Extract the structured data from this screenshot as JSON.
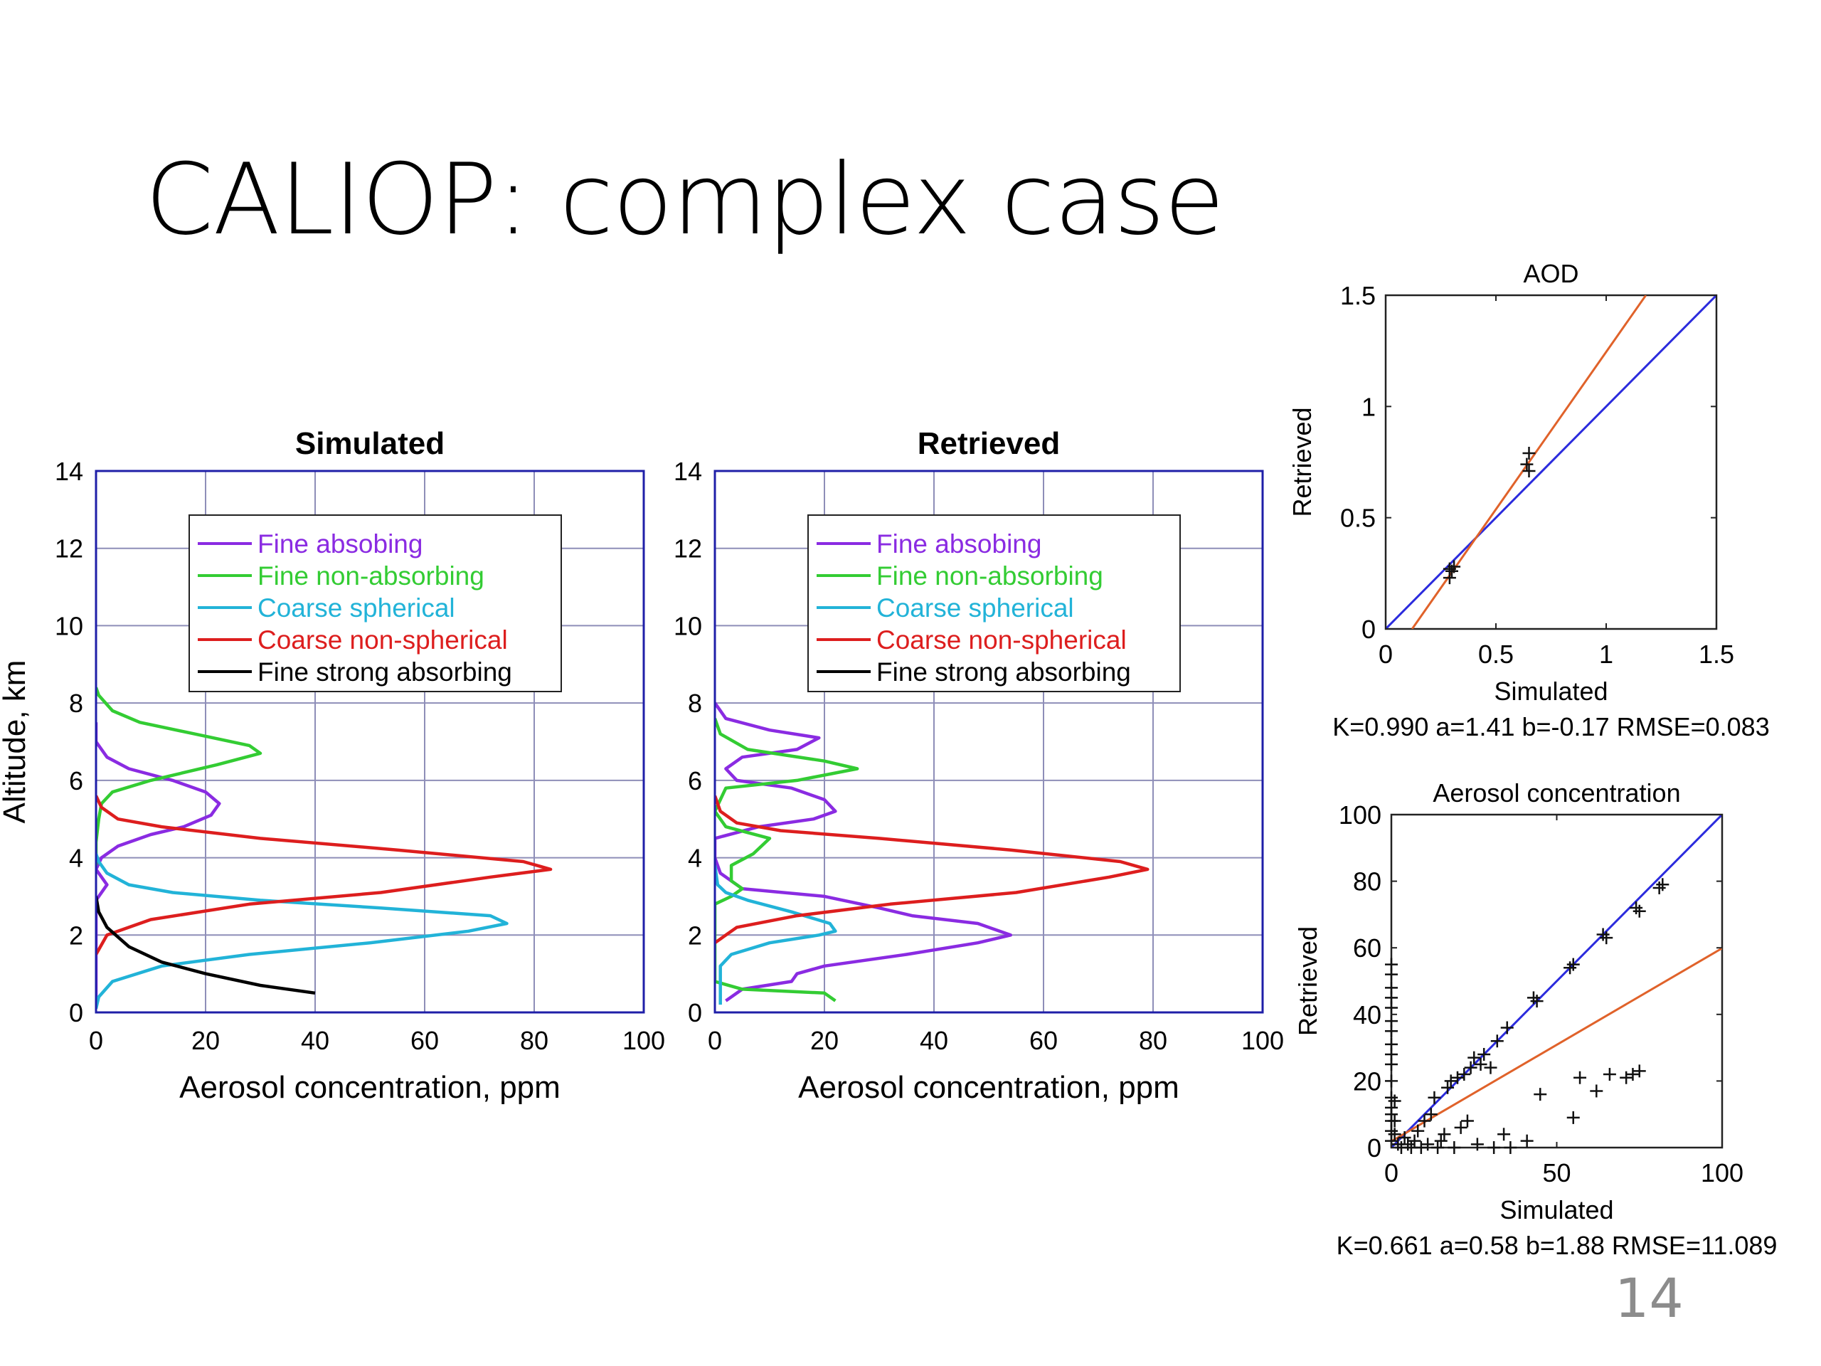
{
  "slide": {
    "title": "CALIOP: complex case",
    "page_number": "14"
  },
  "chart_data": [
    {
      "id": "simulated",
      "type": "line",
      "title": "Simulated",
      "xlabel": "Aerosol concentration, ppm",
      "ylabel": "Altitude, km",
      "xlim": [
        0,
        100
      ],
      "ylim": [
        0,
        14
      ],
      "xticks": [
        0,
        20,
        40,
        60,
        80,
        100
      ],
      "yticks": [
        0,
        2,
        4,
        6,
        8,
        10,
        12,
        14
      ],
      "grid": true,
      "legend_position": "top-right",
      "series": [
        {
          "name": "Fine absobing",
          "color": "#8a2be2",
          "points": [
            [
              0,
              0.3
            ],
            [
              0,
              1.0
            ],
            [
              0,
              2.0
            ],
            [
              0,
              2.9
            ],
            [
              2,
              3.3
            ],
            [
              0,
              3.7
            ],
            [
              1,
              4.0
            ],
            [
              4,
              4.3
            ],
            [
              10,
              4.6
            ],
            [
              16,
              4.8
            ],
            [
              21,
              5.1
            ],
            [
              22.5,
              5.4
            ],
            [
              20,
              5.7
            ],
            [
              14,
              6.0
            ],
            [
              6,
              6.3
            ],
            [
              2,
              6.6
            ],
            [
              0,
              7.0
            ],
            [
              0,
              7.5
            ]
          ]
        },
        {
          "name": "Fine non-absorbing",
          "color": "#33cc33",
          "points": [
            [
              0,
              3.8
            ],
            [
              0,
              4.4
            ],
            [
              0.5,
              5.0
            ],
            [
              1,
              5.4
            ],
            [
              3,
              5.7
            ],
            [
              10,
              6.0
            ],
            [
              22,
              6.4
            ],
            [
              30,
              6.7
            ],
            [
              28,
              6.9
            ],
            [
              18,
              7.2
            ],
            [
              8,
              7.5
            ],
            [
              3,
              7.8
            ],
            [
              0.5,
              8.2
            ],
            [
              0,
              8.4
            ]
          ]
        },
        {
          "name": "Coarse spherical",
          "color": "#22b3d8",
          "points": [
            [
              0,
              0.1
            ],
            [
              0.5,
              0.4
            ],
            [
              3,
              0.8
            ],
            [
              12,
              1.2
            ],
            [
              28,
              1.5
            ],
            [
              50,
              1.8
            ],
            [
              68,
              2.1
            ],
            [
              75,
              2.3
            ],
            [
              72,
              2.5
            ],
            [
              52,
              2.7
            ],
            [
              30,
              2.9
            ],
            [
              14,
              3.1
            ],
            [
              6,
              3.3
            ],
            [
              2,
              3.6
            ],
            [
              0.5,
              3.9
            ],
            [
              0,
              4.1
            ]
          ]
        },
        {
          "name": "Coarse non-spherical",
          "color": "#dd1e1e",
          "points": [
            [
              0,
              1.5
            ],
            [
              2,
              2.0
            ],
            [
              10,
              2.4
            ],
            [
              28,
              2.8
            ],
            [
              52,
              3.1
            ],
            [
              72,
              3.5
            ],
            [
              83,
              3.7
            ],
            [
              78,
              3.9
            ],
            [
              55,
              4.2
            ],
            [
              30,
              4.5
            ],
            [
              12,
              4.8
            ],
            [
              4,
              5.0
            ],
            [
              1,
              5.3
            ],
            [
              0,
              5.6
            ]
          ]
        },
        {
          "name": "Fine strong absorbing",
          "color": "#000000",
          "points": [
            [
              40,
              0.5
            ],
            [
              30,
              0.7
            ],
            [
              20,
              1.0
            ],
            [
              12,
              1.3
            ],
            [
              6,
              1.7
            ],
            [
              2,
              2.2
            ],
            [
              0.5,
              2.6
            ],
            [
              0,
              3.0
            ]
          ]
        }
      ]
    },
    {
      "id": "retrieved",
      "type": "line",
      "title": "Retrieved",
      "xlabel": "Aerosol concentration, ppm",
      "ylabel": "",
      "xlim": [
        0,
        100
      ],
      "ylim": [
        0,
        14
      ],
      "xticks": [
        0,
        20,
        40,
        60,
        80,
        100
      ],
      "yticks": [
        0,
        2,
        4,
        6,
        8,
        10,
        12,
        14
      ],
      "grid": true,
      "legend_position": "top-right",
      "series": [
        {
          "name": "Fine absobing",
          "color": "#8a2be2",
          "points": [
            [
              2,
              0.3
            ],
            [
              5,
              0.6
            ],
            [
              14,
              0.8
            ],
            [
              15,
              1.0
            ],
            [
              20,
              1.2
            ],
            [
              35,
              1.5
            ],
            [
              48,
              1.8
            ],
            [
              54,
              2.0
            ],
            [
              48,
              2.3
            ],
            [
              36,
              2.5
            ],
            [
              30,
              2.7
            ],
            [
              20,
              3.0
            ],
            [
              5,
              3.2
            ],
            [
              1,
              3.6
            ],
            [
              0,
              4.0
            ],
            [
              0,
              4.5
            ],
            [
              8,
              4.8
            ],
            [
              18,
              5.0
            ],
            [
              22,
              5.2
            ],
            [
              20,
              5.5
            ],
            [
              14,
              5.8
            ],
            [
              4,
              6.0
            ],
            [
              2,
              6.3
            ],
            [
              5,
              6.6
            ],
            [
              15,
              6.8
            ],
            [
              19,
              7.1
            ],
            [
              10,
              7.3
            ],
            [
              2,
              7.6
            ],
            [
              0,
              8.0
            ]
          ]
        },
        {
          "name": "Fine non-absorbing",
          "color": "#33cc33",
          "points": [
            [
              22,
              0.3
            ],
            [
              20,
              0.5
            ],
            [
              5,
              0.6
            ],
            [
              0,
              0.8
            ],
            [
              0,
              1.5
            ],
            [
              0,
              2.8
            ],
            [
              3,
              3.0
            ],
            [
              5,
              3.2
            ],
            [
              3,
              3.4
            ],
            [
              3,
              3.8
            ],
            [
              7,
              4.1
            ],
            [
              10,
              4.5
            ],
            [
              2,
              4.8
            ],
            [
              0,
              5.2
            ],
            [
              1,
              5.5
            ],
            [
              2,
              5.8
            ],
            [
              15,
              6.0
            ],
            [
              26,
              6.3
            ],
            [
              20,
              6.5
            ],
            [
              6,
              6.8
            ],
            [
              1,
              7.2
            ],
            [
              0,
              7.6
            ]
          ]
        },
        {
          "name": "Coarse spherical",
          "color": "#22b3d8",
          "points": [
            [
              1,
              0.2
            ],
            [
              1,
              0.5
            ],
            [
              1,
              0.8
            ],
            [
              1,
              1.2
            ],
            [
              3,
              1.5
            ],
            [
              10,
              1.8
            ],
            [
              19,
              2.0
            ],
            [
              22,
              2.1
            ],
            [
              21,
              2.3
            ],
            [
              14,
              2.6
            ],
            [
              6,
              2.9
            ],
            [
              2,
              3.1
            ],
            [
              0.5,
              3.3
            ],
            [
              0,
              3.8
            ]
          ]
        },
        {
          "name": "Coarse non-spherical",
          "color": "#dd1e1e",
          "points": [
            [
              0,
              1.8
            ],
            [
              4,
              2.2
            ],
            [
              15,
              2.5
            ],
            [
              32,
              2.8
            ],
            [
              55,
              3.1
            ],
            [
              72,
              3.5
            ],
            [
              79,
              3.7
            ],
            [
              74,
              3.9
            ],
            [
              54,
              4.2
            ],
            [
              30,
              4.5
            ],
            [
              12,
              4.7
            ],
            [
              4,
              4.9
            ],
            [
              1,
              5.2
            ],
            [
              0,
              5.6
            ]
          ]
        },
        {
          "name": "Fine strong absorbing",
          "color": "#000000",
          "points": []
        }
      ]
    },
    {
      "id": "aod",
      "type": "scatter",
      "title": "AOD",
      "xlabel": "Simulated",
      "ylabel": "Retrieved",
      "xlim": [
        0,
        1.5
      ],
      "ylim": [
        0,
        1.5
      ],
      "xticks": [
        0,
        0.5,
        1,
        1.5
      ],
      "yticks": [
        0,
        0.5,
        1,
        1.5
      ],
      "tick_labels": [
        "0",
        "0.5",
        "1",
        "1.5"
      ],
      "points": [
        [
          0.29,
          0.23
        ],
        [
          0.3,
          0.26
        ],
        [
          0.29,
          0.27
        ],
        [
          0.31,
          0.28
        ],
        [
          0.65,
          0.71
        ],
        [
          0.64,
          0.74
        ],
        [
          0.65,
          0.79
        ]
      ],
      "lines": [
        {
          "label": "1:1",
          "color": "#2b2bdd",
          "points": [
            [
              0,
              0
            ],
            [
              1.5,
              1.5
            ]
          ]
        },
        {
          "label": "fit",
          "color": "#e0622a",
          "points": [
            [
              0.12,
              0
            ],
            [
              1.18,
              1.5
            ]
          ]
        }
      ],
      "stats": "K=0.990 a=1.41 b=-0.17 RMSE=0.083"
    },
    {
      "id": "aerosol_concentration",
      "type": "scatter",
      "title": "Aerosol concentration",
      "xlabel": "Simulated",
      "ylabel": "Retrieved",
      "xlim": [
        0,
        100
      ],
      "ylim": [
        0,
        100
      ],
      "xticks": [
        0,
        50,
        100
      ],
      "yticks": [
        0,
        20,
        40,
        60,
        80,
        100
      ],
      "points": [
        [
          0,
          55
        ],
        [
          0,
          52
        ],
        [
          0,
          48
        ],
        [
          0,
          45
        ],
        [
          0,
          42
        ],
        [
          0,
          38
        ],
        [
          0,
          35
        ],
        [
          0,
          31
        ],
        [
          0,
          28
        ],
        [
          0,
          25
        ],
        [
          0,
          20
        ],
        [
          0,
          15
        ],
        [
          0,
          12
        ],
        [
          0,
          10
        ],
        [
          0,
          8
        ],
        [
          0,
          5
        ],
        [
          0,
          2
        ],
        [
          1,
          14
        ],
        [
          1,
          8
        ],
        [
          1,
          4
        ],
        [
          2,
          1
        ],
        [
          3,
          0
        ],
        [
          4,
          3
        ],
        [
          5,
          1
        ],
        [
          6,
          0
        ],
        [
          7,
          2
        ],
        [
          8,
          5
        ],
        [
          9,
          0
        ],
        [
          10,
          8
        ],
        [
          11,
          1
        ],
        [
          12,
          10
        ],
        [
          13,
          15
        ],
        [
          14,
          0
        ],
        [
          15,
          2
        ],
        [
          16,
          4
        ],
        [
          17,
          18
        ],
        [
          18,
          20
        ],
        [
          19,
          0
        ],
        [
          20,
          21
        ],
        [
          21,
          6
        ],
        [
          22,
          22
        ],
        [
          23,
          8
        ],
        [
          24,
          24
        ],
        [
          25,
          27
        ],
        [
          26,
          1
        ],
        [
          27,
          25
        ],
        [
          28,
          28
        ],
        [
          30,
          24
        ],
        [
          31,
          0
        ],
        [
          32,
          32
        ],
        [
          34,
          4
        ],
        [
          36,
          0
        ],
        [
          35,
          36
        ],
        [
          43,
          45
        ],
        [
          44,
          44
        ],
        [
          41,
          2
        ],
        [
          45,
          16
        ],
        [
          54,
          54
        ],
        [
          55,
          55
        ],
        [
          55,
          9
        ],
        [
          57,
          21
        ],
        [
          62,
          17
        ],
        [
          64,
          64
        ],
        [
          65,
          63
        ],
        [
          66,
          22
        ],
        [
          71,
          21
        ],
        [
          73,
          22
        ],
        [
          74,
          72
        ],
        [
          75,
          71
        ],
        [
          75,
          23
        ],
        [
          81,
          78
        ],
        [
          82,
          79
        ]
      ],
      "lines": [
        {
          "label": "1:1",
          "color": "#2b2bdd",
          "points": [
            [
              0,
              0
            ],
            [
              100,
              100
            ]
          ]
        },
        {
          "label": "fit",
          "color": "#e0622a",
          "points": [
            [
              0,
              1.88
            ],
            [
              100,
              59.88
            ]
          ]
        }
      ],
      "stats": "K=0.661 a=0.58 b=1.88 RMSE=11.089"
    }
  ]
}
